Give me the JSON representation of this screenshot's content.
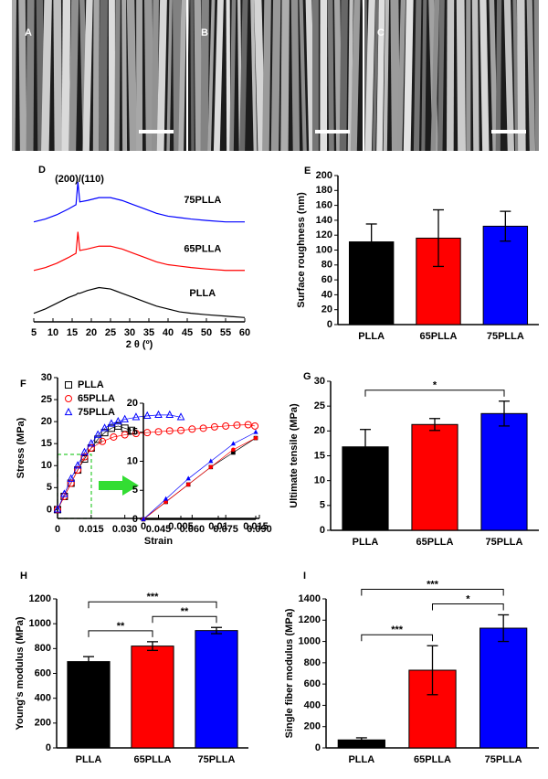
{
  "images": [
    {
      "label": "A"
    },
    {
      "label": "B"
    },
    {
      "label": "C"
    }
  ],
  "chart_data": [
    {
      "type": "line",
      "panel": "D",
      "annotation": "(200)/(110)",
      "xlabel": "2 θ (º)",
      "xlim": [
        5,
        60
      ],
      "xticks": [
        5,
        10,
        15,
        20,
        25,
        30,
        35,
        40,
        45,
        50,
        55,
        60
      ],
      "ylim": [
        0,
        10.5
      ],
      "x": [
        5,
        8,
        11,
        14,
        16,
        16.5,
        17,
        19,
        22,
        25,
        28,
        31,
        34,
        37,
        40,
        43,
        46,
        50,
        55,
        60
      ],
      "series": [
        {
          "name": "75PLLA",
          "color": "#0000ff",
          "values": [
            7.0,
            7.2,
            7.5,
            7.9,
            8.2,
            9.8,
            8.4,
            8.5,
            8.7,
            8.7,
            8.5,
            8.2,
            7.9,
            7.6,
            7.4,
            7.3,
            7.2,
            7.1,
            7.0,
            7.0
          ]
        },
        {
          "name": "65PLLA",
          "color": "#ff0000",
          "values": [
            3.6,
            3.8,
            4.1,
            4.5,
            4.8,
            6.3,
            5.0,
            5.1,
            5.3,
            5.3,
            5.1,
            4.8,
            4.5,
            4.2,
            4.0,
            3.9,
            3.8,
            3.7,
            3.6,
            3.6
          ]
        },
        {
          "name": "PLLA",
          "color": "#000000",
          "values": [
            0.6,
            0.9,
            1.3,
            1.7,
            1.9,
            2.0,
            2.0,
            2.2,
            2.4,
            2.3,
            2.0,
            1.7,
            1.4,
            1.1,
            0.9,
            0.7,
            0.6,
            0.5,
            0.4,
            0.3
          ]
        }
      ]
    },
    {
      "type": "bar",
      "panel": "E",
      "ylabel": "Surface roughness (nm)",
      "categories": [
        "PLLA",
        "65PLLA",
        "75PLLA"
      ],
      "values": [
        111,
        116,
        132
      ],
      "errors": [
        24,
        38,
        20
      ],
      "colors": [
        "#000000",
        "#ff0000",
        "#0000ff"
      ],
      "ylim": [
        0,
        200
      ],
      "yticks": [
        0,
        20,
        40,
        60,
        80,
        100,
        120,
        140,
        160,
        180,
        200
      ]
    },
    {
      "type": "line",
      "panel": "F",
      "xlabel": "Strain",
      "ylabel": "Stress (MPa)",
      "xlim": [
        0,
        0.09
      ],
      "xticks": [
        0,
        0.015,
        {
          "value": 0.03,
          "label": "0.030"
        },
        0.045,
        {
          "value": 0.06,
          "label": "0.060"
        },
        0.075,
        {
          "value": 0.09,
          "label": "0.090"
        }
      ],
      "ylim": [
        -2,
        30
      ],
      "yticks": [
        0,
        5,
        10,
        15,
        20,
        25,
        30
      ],
      "series": [
        {
          "name": "PLLA",
          "color": "#000000",
          "marker": "square",
          "x": [
            0,
            0.003,
            0.006,
            0.009,
            0.012,
            0.015,
            0.018,
            0.021,
            0.024,
            0.027,
            0.03,
            0.033
          ],
          "values": [
            0,
            3,
            6,
            9,
            11.5,
            14,
            16,
            17.5,
            18.5,
            19,
            18.5,
            18
          ]
        },
        {
          "name": "65PLLA",
          "color": "#ff0000",
          "marker": "circle",
          "x": [
            0,
            0.003,
            0.006,
            0.009,
            0.012,
            0.015,
            0.02,
            0.025,
            0.03,
            0.035,
            0.04,
            0.045,
            0.05,
            0.055,
            0.06,
            0.065,
            0.07,
            0.075,
            0.08,
            0.085,
            0.088
          ],
          "values": [
            0,
            3,
            6,
            9,
            12,
            14,
            15.5,
            16.5,
            17,
            17.3,
            17.5,
            17.7,
            17.9,
            18,
            18.3,
            18.5,
            18.8,
            19,
            19.2,
            19.3,
            19
          ]
        },
        {
          "name": "75PLLA",
          "color": "#0000ff",
          "marker": "triangle",
          "x": [
            0,
            0.003,
            0.006,
            0.009,
            0.012,
            0.015,
            0.018,
            0.021,
            0.024,
            0.027,
            0.03,
            0.035,
            0.04,
            0.045,
            0.05,
            0.055
          ],
          "values": [
            0,
            3.5,
            7,
            10,
            13,
            15,
            17,
            18.5,
            19.5,
            20,
            20.5,
            21,
            21.3,
            21.5,
            21.5,
            21
          ]
        }
      ],
      "inset": {
        "xlim": [
          0,
          0.015
        ],
        "xticks": [
          0,
          0.005,
          0.01,
          0.015
        ],
        "ylim": [
          0,
          20
        ],
        "yticks": [
          0,
          5,
          10,
          15,
          20
        ]
      }
    },
    {
      "type": "bar",
      "panel": "G",
      "ylabel": "Ultimate tensile (MPa)",
      "categories": [
        "PLLA",
        "65PLLA",
        "75PLLA"
      ],
      "values": [
        16.8,
        21.3,
        23.5
      ],
      "errors": [
        3.5,
        1.2,
        2.5
      ],
      "colors": [
        "#000000",
        "#ff0000",
        "#0000ff"
      ],
      "ylim": [
        0,
        30
      ],
      "yticks": [
        0,
        5,
        10,
        15,
        20,
        25,
        30
      ],
      "significance": [
        {
          "pair": [
            "PLLA",
            "75PLLA"
          ],
          "label": "*"
        }
      ]
    },
    {
      "type": "bar",
      "panel": "H",
      "ylabel": "Young's modulus (MPa)",
      "categories": [
        "PLLA",
        "65PLLA",
        "75PLLA"
      ],
      "values": [
        695,
        820,
        945
      ],
      "errors": [
        40,
        35,
        25
      ],
      "colors": [
        "#000000",
        "#ff0000",
        "#0000ff"
      ],
      "ylim": [
        0,
        1200
      ],
      "yticks": [
        0,
        200,
        400,
        600,
        800,
        1000,
        1200
      ],
      "significance": [
        {
          "pair": [
            "PLLA",
            "65PLLA"
          ],
          "label": "**"
        },
        {
          "pair": [
            "65PLLA",
            "75PLLA"
          ],
          "label": "**"
        },
        {
          "pair": [
            "PLLA",
            "75PLLA"
          ],
          "label": "***"
        }
      ]
    },
    {
      "type": "bar",
      "panel": "I",
      "ylabel": "Single fiber modulus (MPa)",
      "categories": [
        "PLLA",
        "65PLLA",
        "75PLLA"
      ],
      "values": [
        75,
        730,
        1125
      ],
      "errors": [
        20,
        230,
        125
      ],
      "colors": [
        "#000000",
        "#ff0000",
        "#0000ff"
      ],
      "ylim": [
        0,
        1400
      ],
      "yticks": [
        0,
        200,
        400,
        600,
        800,
        1000,
        1200,
        1400
      ],
      "significance": [
        {
          "pair": [
            "PLLA",
            "65PLLA"
          ],
          "label": "***"
        },
        {
          "pair": [
            "65PLLA",
            "75PLLA"
          ],
          "label": "*"
        },
        {
          "pair": [
            "PLLA",
            "75PLLA"
          ],
          "label": "***"
        }
      ]
    }
  ]
}
